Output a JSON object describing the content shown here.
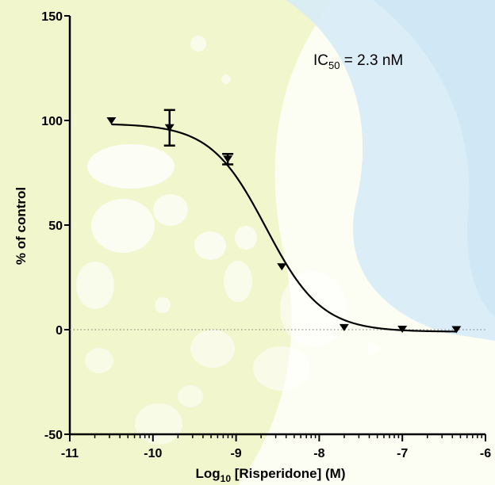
{
  "chart_data": {
    "type": "scatter",
    "title": "",
    "xlabel": {
      "main": "Log",
      "sub": "10",
      "rest": " [Risperidone] (M)"
    },
    "ylabel": "% of control",
    "xlim": [
      -11,
      -6
    ],
    "ylim": [
      -50,
      150
    ],
    "xticks": [
      -11,
      -10,
      -9,
      -8,
      -7,
      -6
    ],
    "yticks": [
      -50,
      0,
      50,
      100,
      150
    ],
    "annotation": {
      "prefix": "IC",
      "sub": "50",
      "suffix": " = 2.3 nM"
    },
    "series": [
      {
        "points": [
          {
            "x": -10.5,
            "y": 99.8
          },
          {
            "x": -9.8,
            "y": 96.5,
            "err": 8.5
          },
          {
            "x": -9.1,
            "y": 81.5,
            "err": 2.5
          },
          {
            "x": -8.45,
            "y": 30.0
          },
          {
            "x": -7.7,
            "y": 1.0
          },
          {
            "x": -7.0,
            "y": 0.2
          },
          {
            "x": -6.35,
            "y": 0.0
          }
        ],
        "fit": {
          "top": 98.5,
          "bottom": -1.0,
          "log_ic50": -8.64,
          "hill": 1.3
        }
      }
    ],
    "reference_line": {
      "y": 0,
      "style": "dotted"
    },
    "grid": false
  }
}
